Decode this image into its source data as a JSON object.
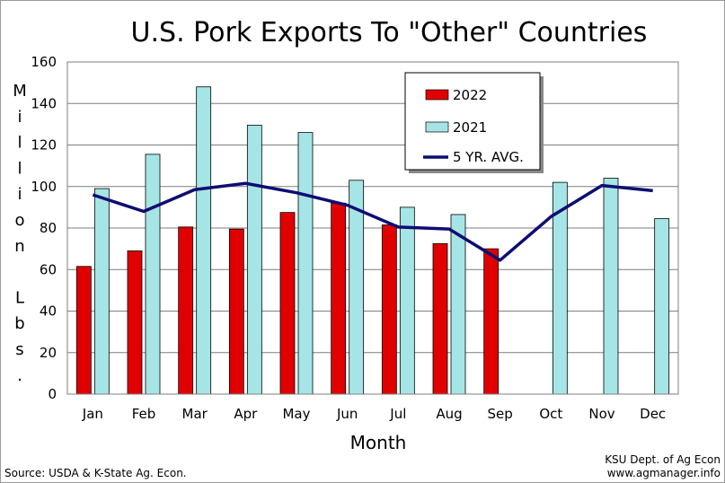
{
  "chart_data": {
    "type": "bar",
    "title": "U.S. Pork Exports To \"Other\" Countries",
    "xlabel": "Month",
    "ylabel": "Million Lbs.",
    "ylim": [
      0,
      160
    ],
    "yticks": [
      0,
      20,
      40,
      60,
      80,
      100,
      120,
      140,
      160
    ],
    "grid": true,
    "legend_position": "top-right",
    "categories": [
      "Jan",
      "Feb",
      "Mar",
      "Apr",
      "May",
      "Jun",
      "Jul",
      "Aug",
      "Sep",
      "Oct",
      "Nov",
      "Dec"
    ],
    "series": [
      {
        "name": "2022",
        "type": "bar",
        "color": "#e00000",
        "values": [
          61.5,
          69,
          80.5,
          79.5,
          87.5,
          92,
          81.5,
          72.5,
          70,
          null,
          null,
          null
        ]
      },
      {
        "name": "2021",
        "type": "bar",
        "color": "#a6e5e5",
        "values": [
          99,
          115.5,
          148,
          129.5,
          126,
          103,
          90,
          86.5,
          null,
          102,
          104,
          84.5
        ]
      },
      {
        "name": "5 YR. AVG.",
        "type": "line",
        "color": "#0d0d73",
        "values": [
          96,
          88,
          98.5,
          101.5,
          97,
          91,
          80.5,
          79.5,
          64.5,
          85.5,
          100.5,
          98
        ]
      }
    ]
  },
  "footer": {
    "source": "Source:  USDA & K-State Ag. Econ.",
    "credit_line1": "KSU Dept. of Ag Econ",
    "credit_line2": "www.agmanager.info"
  }
}
